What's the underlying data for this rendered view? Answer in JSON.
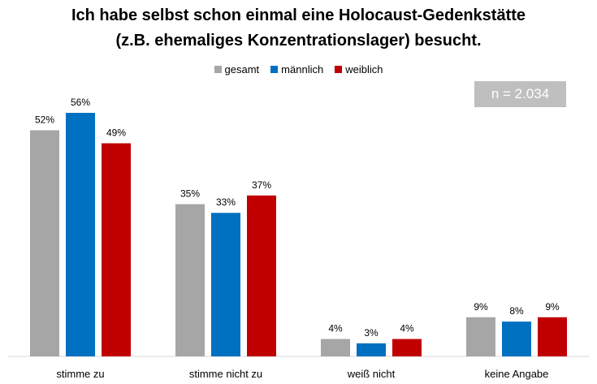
{
  "title_line1": "Ich habe selbst schon einmal eine Holocaust-Gedenkstätte",
  "title_line2": "(z.B. ehemaliges Konzentrationslager) besucht.",
  "badge": "n = 2.034",
  "colors": {
    "gesamt": "#a6a6a6",
    "maennlich": "#0070c0",
    "weiblich": "#c00000"
  },
  "chart_data": {
    "type": "bar",
    "title": "Ich habe selbst schon einmal eine Holocaust-Gedenkstätte (z.B. ehemaliges Konzentrationslager) besucht.",
    "categories": [
      "stimme zu",
      "stimme nicht zu",
      "weiß nicht",
      "keine Angabe"
    ],
    "series": [
      {
        "name": "gesamt",
        "color": "#a6a6a6",
        "values": [
          52,
          35,
          4,
          9
        ],
        "labels": [
          "52%",
          "35%",
          "4%",
          "9%"
        ]
      },
      {
        "name": "männlich",
        "color": "#0070c0",
        "values": [
          56,
          33,
          3,
          8
        ],
        "labels": [
          "56%",
          "33%",
          "3%",
          "8%"
        ]
      },
      {
        "name": "weiblich",
        "color": "#c00000",
        "values": [
          49,
          37,
          4,
          9
        ],
        "labels": [
          "49%",
          "37%",
          "4%",
          "9%"
        ]
      }
    ],
    "ylim": [
      0,
      56
    ],
    "grid": false,
    "legend_position": "top"
  }
}
